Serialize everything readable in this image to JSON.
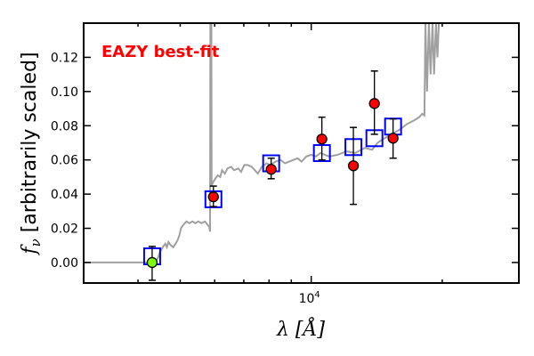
{
  "chart_data": {
    "type": "scatter",
    "title": "",
    "annotation": "EAZY best-fit",
    "xlabel": "λ [Å]",
    "ylabel_symbol": "f",
    "ylabel_sub": "ν",
    "ylabel_text": "[arbitrarily scaled]",
    "xscale": "log",
    "xlim": [
      3000,
      30000
    ],
    "ylim": [
      -0.012,
      0.14
    ],
    "x_major_ticks": [
      {
        "value": 10000,
        "label_base": "10",
        "label_exp": "4"
      }
    ],
    "x_minor_ticks": [
      4000,
      5000,
      6000,
      7000,
      8000,
      9000,
      20000
    ],
    "y_ticks": [
      0.0,
      0.02,
      0.04,
      0.06,
      0.08,
      0.1,
      0.12
    ],
    "y_tick_labels": [
      "0.00",
      "0.02",
      "0.04",
      "0.06",
      "0.08",
      "0.10",
      "0.12"
    ],
    "series": [
      {
        "name": "model spectrum",
        "type": "line",
        "color": "#a0a0a0",
        "points": [
          [
            3000,
            0
          ],
          [
            4380,
            0
          ],
          [
            4450,
            0.003
          ],
          [
            4490,
            0.006
          ],
          [
            4560,
            0.009
          ],
          [
            4620,
            0.011
          ],
          [
            4660,
            0.009
          ],
          [
            4700,
            0.012
          ],
          [
            4760,
            0.01
          ],
          [
            4820,
            0.009
          ],
          [
            4880,
            0.011
          ],
          [
            4930,
            0.013
          ],
          [
            4980,
            0.016
          ],
          [
            5020,
            0.02
          ],
          [
            5080,
            0.022
          ],
          [
            5170,
            0.024
          ],
          [
            5250,
            0.023
          ],
          [
            5330,
            0.024
          ],
          [
            5420,
            0.023
          ],
          [
            5500,
            0.024
          ],
          [
            5600,
            0.023
          ],
          [
            5700,
            0.024
          ],
          [
            5780,
            0.022
          ],
          [
            5830,
            0.021
          ],
          [
            5855,
            0.018
          ],
          [
            5865,
            0.14
          ],
          [
            5895,
            0.14
          ],
          [
            5905,
            0.045
          ],
          [
            5950,
            0.047
          ],
          [
            6020,
            0.049
          ],
          [
            6100,
            0.051
          ],
          [
            6180,
            0.05
          ],
          [
            6240,
            0.054
          ],
          [
            6330,
            0.052
          ],
          [
            6420,
            0.055
          ],
          [
            6540,
            0.056
          ],
          [
            6650,
            0.054
          ],
          [
            6800,
            0.055
          ],
          [
            6900,
            0.053
          ],
          [
            7020,
            0.057
          ],
          [
            7150,
            0.057
          ],
          [
            7300,
            0.056
          ],
          [
            7420,
            0.054
          ],
          [
            7540,
            0.052
          ],
          [
            7700,
            0.056
          ],
          [
            7900,
            0.058
          ],
          [
            8050,
            0.057
          ],
          [
            8280,
            0.059
          ],
          [
            8500,
            0.06
          ],
          [
            8700,
            0.058
          ],
          [
            8900,
            0.059
          ],
          [
            9100,
            0.06
          ],
          [
            9300,
            0.061
          ],
          [
            9500,
            0.059
          ],
          [
            9750,
            0.062
          ],
          [
            10000,
            0.063
          ],
          [
            10250,
            0.062
          ],
          [
            10500,
            0.064
          ],
          [
            10750,
            0.063
          ],
          [
            11000,
            0.062
          ],
          [
            11500,
            0.063
          ],
          [
            12080,
            0.065
          ],
          [
            12600,
            0.064
          ],
          [
            13280,
            0.067
          ],
          [
            13800,
            0.066
          ],
          [
            14200,
            0.07
          ],
          [
            14590,
            0.072
          ],
          [
            15300,
            0.075
          ],
          [
            16030,
            0.078
          ],
          [
            16600,
            0.081
          ],
          [
            17200,
            0.083
          ],
          [
            17700,
            0.085
          ],
          [
            18000,
            0.087
          ],
          [
            18200,
            0.086
          ],
          [
            18300,
            0.14
          ],
          [
            18450,
            0.1
          ],
          [
            18640,
            0.14
          ],
          [
            18800,
            0.11
          ],
          [
            19000,
            0.14
          ],
          [
            19150,
            0.11
          ],
          [
            19350,
            0.14
          ],
          [
            19500,
            0.12
          ],
          [
            19650,
            0.14
          ]
        ]
      },
      {
        "name": "model fluxes",
        "type": "marker",
        "marker": "open-square",
        "color": "#0000ff",
        "points": [
          [
            4310,
            0.0036
          ],
          [
            5960,
            0.037
          ],
          [
            8090,
            0.058
          ],
          [
            10580,
            0.064
          ],
          [
            12500,
            0.0675
          ],
          [
            13970,
            0.0727
          ],
          [
            15420,
            0.0795
          ]
        ]
      },
      {
        "name": "observed fluxes",
        "type": "errorbar",
        "marker": "circle",
        "edgecolor": "#000000",
        "points": [
          {
            "x": 4310,
            "y": 0.0,
            "err_lo": -0.0104,
            "err_hi": 0.0094,
            "color": "#7fff00"
          },
          {
            "x": 5960,
            "y": 0.0384,
            "err_lo": 0.0327,
            "err_hi": 0.0447,
            "color": "#ff0000"
          },
          {
            "x": 8090,
            "y": 0.0545,
            "err_lo": 0.049,
            "err_hi": 0.061,
            "color": "#ff0000"
          },
          {
            "x": 10580,
            "y": 0.0722,
            "err_lo": 0.06,
            "err_hi": 0.085,
            "color": "#ff0000"
          },
          {
            "x": 12500,
            "y": 0.0566,
            "err_lo": 0.034,
            "err_hi": 0.079,
            "color": "#ff0000"
          },
          {
            "x": 13970,
            "y": 0.093,
            "err_lo": 0.075,
            "err_hi": 0.112,
            "color": "#ff0000"
          },
          {
            "x": 15420,
            "y": 0.0727,
            "err_lo": 0.061,
            "err_hi": 0.084,
            "color": "#ff0000"
          }
        ]
      }
    ],
    "grid": false,
    "legend": "none"
  }
}
